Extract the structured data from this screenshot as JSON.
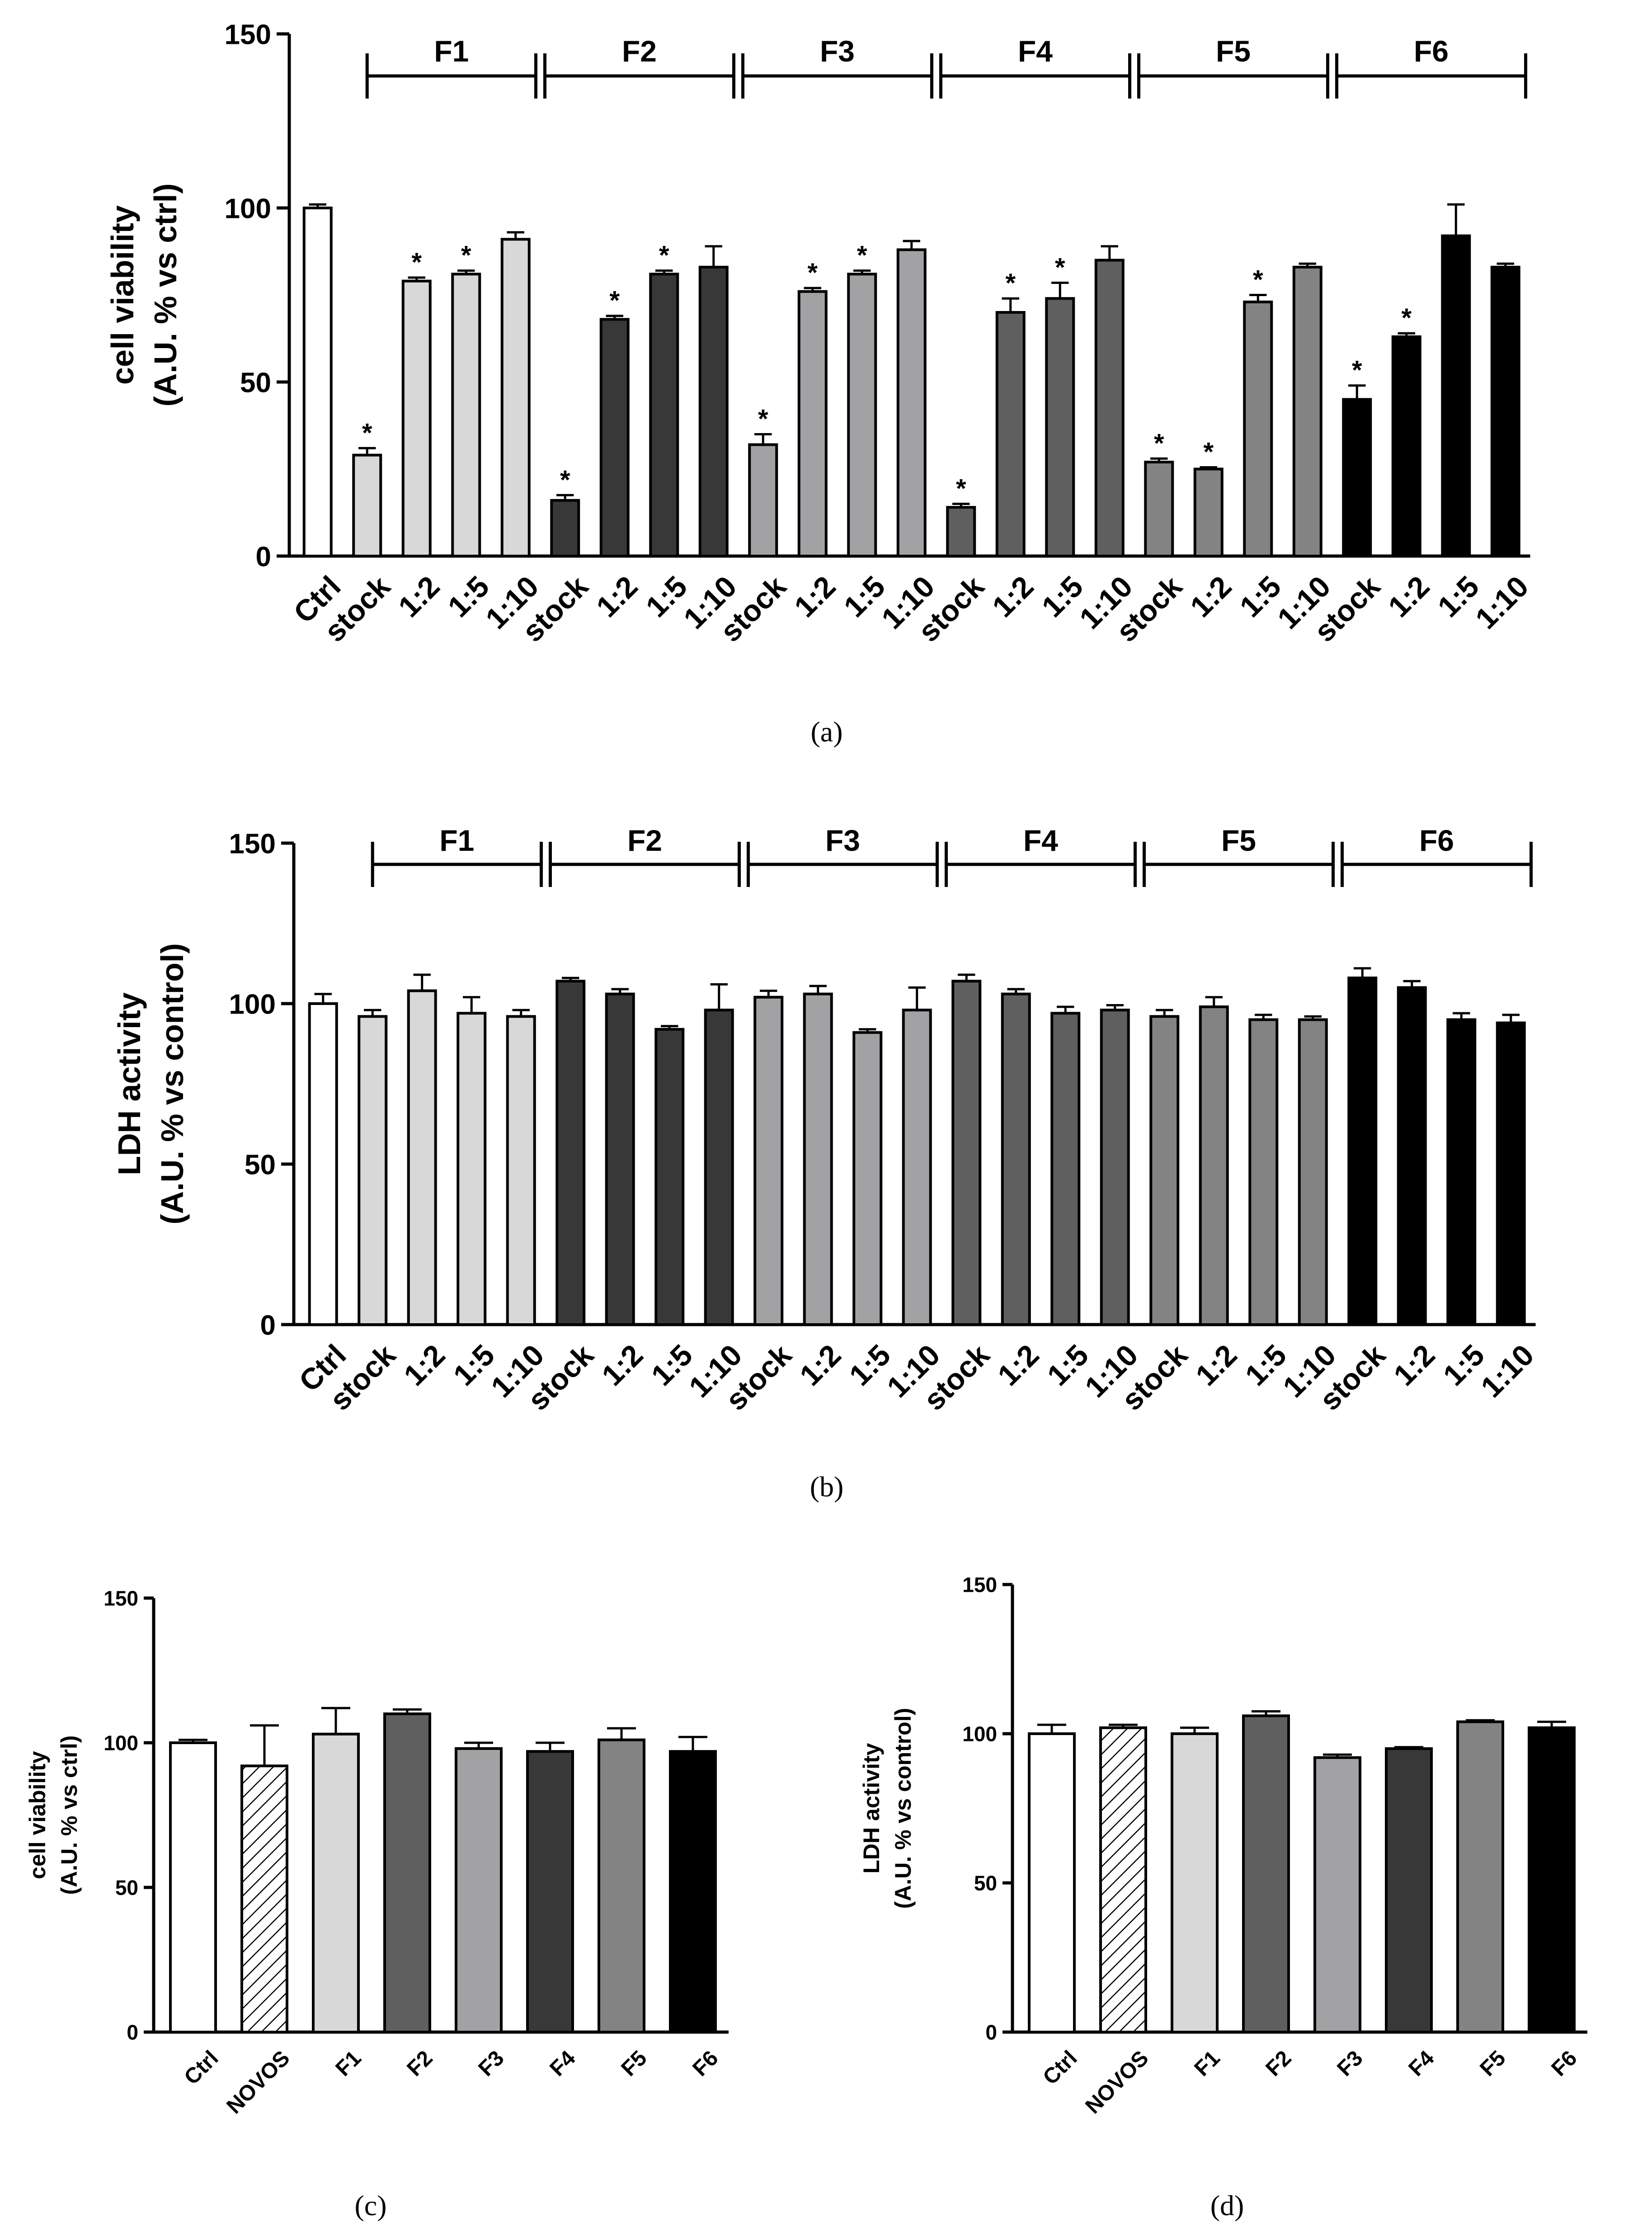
{
  "chart_data": [
    {
      "panel": "(a)",
      "type": "bar",
      "ylabel_line1": "cell viability",
      "ylabel_line2": "(A.U. % vs ctrl)",
      "ylim": [
        0,
        150
      ],
      "yticks": [
        "0",
        "50",
        "100",
        "150"
      ],
      "categories": [
        "Ctrl",
        "stock",
        "1:2",
        "1:5",
        "1:10",
        "stock",
        "1:2",
        "1:5",
        "1:10",
        "stock",
        "1:2",
        "1:5",
        "1:10",
        "stock",
        "1:2",
        "1:5",
        "1:10",
        "stock",
        "1:2",
        "1:5",
        "1:10",
        "stock",
        "1:2",
        "1:5",
        "1:10"
      ],
      "values": [
        100,
        29,
        79,
        81,
        91,
        16,
        68,
        81,
        83,
        32,
        76,
        81,
        88,
        14,
        70,
        74,
        85,
        27,
        25,
        73,
        83,
        45,
        63,
        92,
        83
      ],
      "errors": [
        1,
        2,
        1,
        1,
        2,
        1.5,
        1,
        1,
        6,
        3,
        1,
        1,
        2.5,
        1,
        4,
        4.5,
        4,
        1,
        0.5,
        2,
        1,
        4,
        1,
        9,
        1
      ],
      "significance": [
        "",
        "*",
        "*",
        "*",
        "",
        "*",
        "*",
        "*",
        "",
        "*",
        "*",
        "*",
        "",
        "*",
        "*",
        "*",
        "",
        "*",
        "*",
        "*",
        "",
        "*",
        "*",
        "",
        ""
      ],
      "groups": [
        {
          "label": "F1",
          "color": "#d8d8d8"
        },
        {
          "label": "F2",
          "color": "#383838"
        },
        {
          "label": "F3",
          "color": "#a2a2a4"
        },
        {
          "label": "F4",
          "color": "#5f5f5f"
        },
        {
          "label": "F5",
          "color": "#838383"
        },
        {
          "label": "F6",
          "color": "#000000"
        }
      ],
      "ctrl_color": "#ffffff",
      "caption": "(a)"
    },
    {
      "panel": "(b)",
      "type": "bar",
      "ylabel_line1": "LDH activity",
      "ylabel_line2": "(A.U. % vs control)",
      "ylim": [
        0,
        150
      ],
      "yticks": [
        "0",
        "50",
        "100",
        "150"
      ],
      "categories": [
        "Ctrl",
        "stock",
        "1:2",
        "1:5",
        "1:10",
        "stock",
        "1:2",
        "1:5",
        "1:10",
        "stock",
        "1:2",
        "1:5",
        "1:10",
        "stock",
        "1:2",
        "1:5",
        "1:10",
        "stock",
        "1:2",
        "1:5",
        "1:10",
        "stock",
        "1:2",
        "1:5",
        "1:10"
      ],
      "values": [
        100,
        96,
        104,
        97,
        96,
        107,
        103,
        92,
        98,
        102,
        103,
        91,
        98,
        107,
        103,
        97,
        98,
        96,
        99,
        95,
        95,
        108,
        105,
        95,
        94
      ],
      "errors": [
        3,
        2,
        5,
        5,
        2,
        1,
        1.5,
        1,
        8,
        2,
        2.5,
        1,
        7,
        2,
        1.5,
        2,
        1.5,
        2,
        3,
        1.5,
        1,
        3,
        2,
        2,
        2.5
      ],
      "groups": [
        {
          "label": "F1",
          "color": "#d8d8d8"
        },
        {
          "label": "F2",
          "color": "#383838"
        },
        {
          "label": "F3",
          "color": "#a2a2a4"
        },
        {
          "label": "F4",
          "color": "#5f5f5f"
        },
        {
          "label": "F5",
          "color": "#838383"
        },
        {
          "label": "F6",
          "color": "#000000"
        }
      ],
      "ctrl_color": "#ffffff",
      "caption": "(b)"
    },
    {
      "panel": "(c)",
      "type": "bar",
      "ylabel_line1": "cell viability",
      "ylabel_line2": "(A.U. % vs ctrl)",
      "ylim": [
        0,
        150
      ],
      "yticks": [
        "0",
        "50",
        "100",
        "150"
      ],
      "categories": [
        "Ctrl",
        "NOVOS",
        "F1",
        "F2",
        "F3",
        "F4",
        "F5",
        "F6"
      ],
      "values": [
        100,
        92,
        103,
        110,
        98,
        97,
        101,
        97
      ],
      "errors": [
        1,
        14,
        9,
        1.5,
        2,
        3,
        4,
        5
      ],
      "colors": [
        "#ffffff",
        "hatch",
        "#d8d8d8",
        "#5f5f5f",
        "#a2a2a4",
        "#383838",
        "#838383",
        "#000000"
      ],
      "caption": "(c)"
    },
    {
      "panel": "(d)",
      "type": "bar",
      "ylabel_line1": "LDH activity",
      "ylabel_line2": "(A.U. % vs control)",
      "ylim": [
        0,
        150
      ],
      "yticks": [
        "0",
        "50",
        "100",
        "150"
      ],
      "categories": [
        "Ctrl",
        "NOVOS",
        "F1",
        "F2",
        "F3",
        "F4",
        "F5",
        "F6"
      ],
      "values": [
        100,
        102,
        100,
        106,
        92,
        95,
        104,
        102
      ],
      "errors": [
        3,
        1,
        2,
        1.5,
        1,
        0.5,
        0.5,
        2
      ],
      "colors": [
        "#ffffff",
        "hatch",
        "#d8d8d8",
        "#5f5f5f",
        "#a2a2a4",
        "#383838",
        "#838383",
        "#000000"
      ],
      "caption": "(d)"
    }
  ]
}
